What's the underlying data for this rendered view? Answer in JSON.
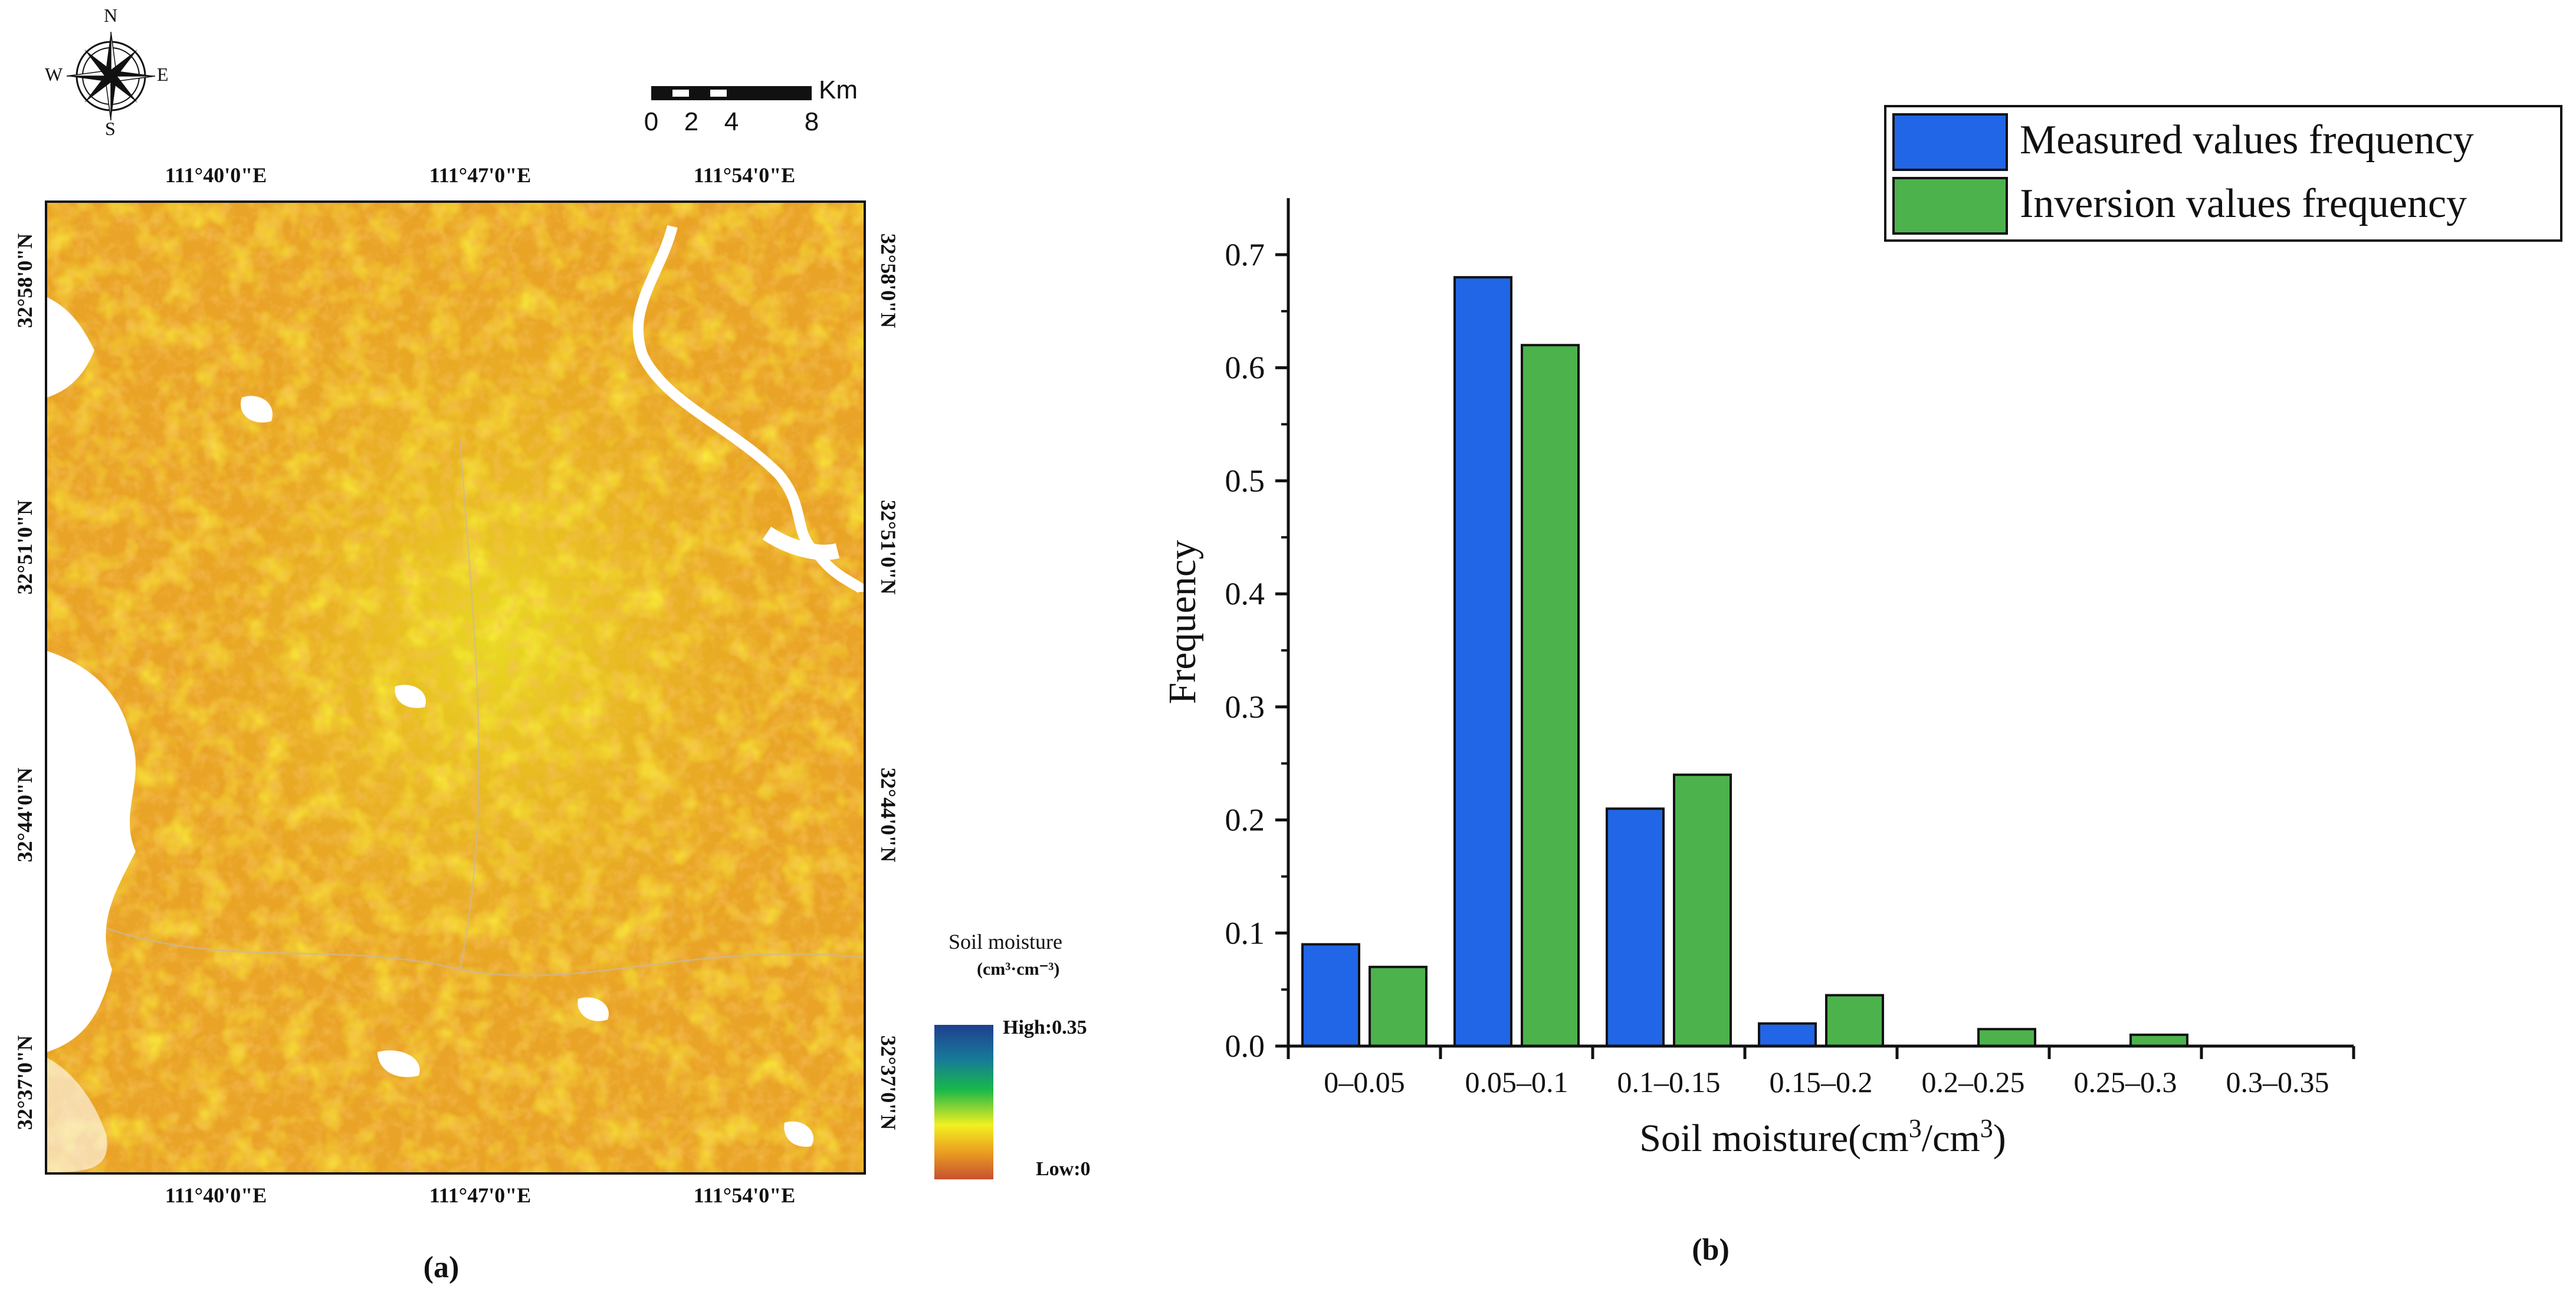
{
  "panel_a": {
    "label": "(a)",
    "compass": {
      "north": "N",
      "south": "S",
      "east": "E",
      "west": "W"
    },
    "scale_bar": {
      "unit": "Km",
      "ticks": [
        "0",
        "2",
        "4",
        "8"
      ]
    },
    "lon_labels": [
      "111°40'0\"E",
      "111°47'0\"E",
      "111°54'0\"E"
    ],
    "lat_labels": [
      "32°58'0\"N",
      "32°51'0\"N",
      "32°44'0\"N",
      "32°37'0\"N"
    ],
    "legend": {
      "title": "Soil moisture",
      "unit": "(cm³·cm⁻³)",
      "high": "High:0.35",
      "low": "Low:0"
    }
  },
  "panel_b": {
    "label": "(b)"
  },
  "chart_data": {
    "type": "bar",
    "title": "",
    "xlabel": "Soil moisture(cm",
    "xlabel_sup1": "3",
    "xlabel_mid": "/cm",
    "xlabel_sup2": "3",
    "xlabel_end": ")",
    "ylabel": "Frequency",
    "ylim": [
      0,
      0.75
    ],
    "yticks": [
      "0.0",
      "0.1",
      "0.2",
      "0.3",
      "0.4",
      "0.5",
      "0.6",
      "0.7"
    ],
    "categories": [
      "0–0.05",
      "0.05–0.1",
      "0.1–0.15",
      "0.15–0.2",
      "0.2–0.25",
      "0.25–0.3",
      "0.3–0.35"
    ],
    "series": [
      {
        "name": "Measured values frequency",
        "color": "#2166e6",
        "values": [
          0.09,
          0.68,
          0.21,
          0.02,
          0,
          0,
          0
        ]
      },
      {
        "name": "Inversion values frequency",
        "color": "#4cb34c",
        "values": [
          0.07,
          0.62,
          0.24,
          0.045,
          0.015,
          0.01,
          0
        ]
      }
    ],
    "legend_position": "top-right"
  }
}
